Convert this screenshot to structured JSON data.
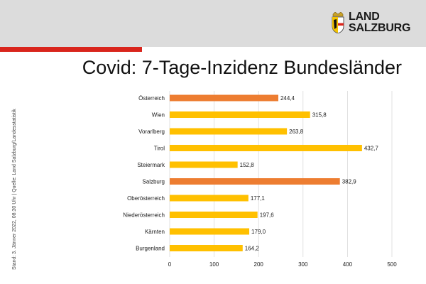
{
  "header": {
    "logo_line1": "LAND",
    "logo_line2": "SALZBURG",
    "title": "Covid: 7-Tage-Inzidenz Bundesländer"
  },
  "side_note": "Stand: 3. Jänner 2022, 08:30 Uhr | Quelle: Land Salzburg/Landesstatistik",
  "colors": {
    "header_band": "#dcdcdc",
    "red_stripe": "#d9251c",
    "highlight_bar": "#ed7d31",
    "default_bar": "#ffc000",
    "gridline": "#d9d9d9"
  },
  "chart_data": {
    "type": "bar",
    "orientation": "horizontal",
    "title": "Covid: 7-Tage-Inzidenz Bundesländer",
    "xlabel": "",
    "ylabel": "",
    "xlim": [
      0,
      500
    ],
    "ticks": [
      0,
      100,
      200,
      300,
      400,
      500
    ],
    "grid": true,
    "categories": [
      "Österreich",
      "Wien",
      "Vorarlberg",
      "Tirol",
      "Steiermark",
      "Salzburg",
      "Oberösterreich",
      "Niederösterreich",
      "Kärnten",
      "Burgenland"
    ],
    "values": [
      244.4,
      315.8,
      263.8,
      432.7,
      152.8,
      382.9,
      177.1,
      197.6,
      179.0,
      164.2
    ],
    "value_labels": [
      "244,4",
      "315,8",
      "263,8",
      "432,7",
      "152,8",
      "382,9",
      "177,1",
      "197,6",
      "179,0",
      "164,2"
    ],
    "highlighted": [
      "Österreich",
      "Salzburg"
    ]
  }
}
